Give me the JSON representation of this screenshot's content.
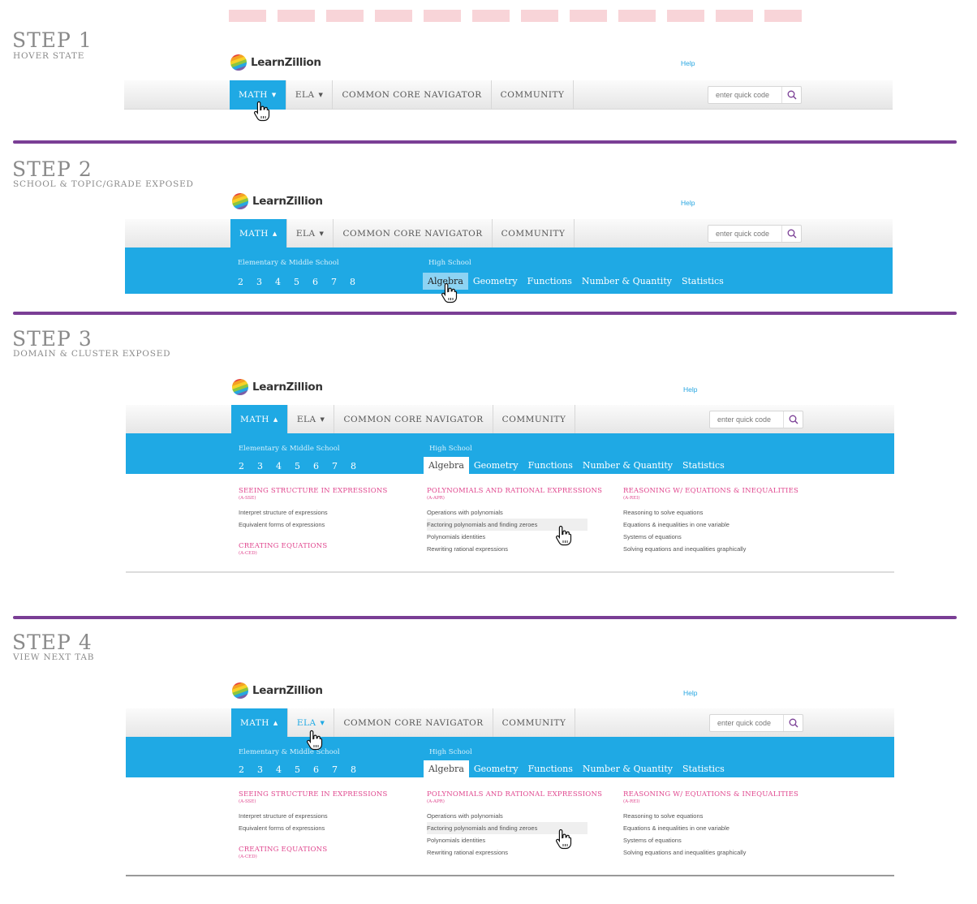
{
  "markers": [
    "",
    "",
    "",
    "",
    "",
    "",
    "",
    "",
    "",
    "",
    "",
    ""
  ],
  "steps": [
    {
      "title": "STEP 1",
      "subtitle": "HOVER STATE"
    },
    {
      "title": "STEP 2",
      "subtitle": "SCHOOL & TOPIC/GRADE EXPOSED"
    },
    {
      "title": "STEP 3",
      "subtitle": "DOMAIN & CLUSTER EXPOSED"
    },
    {
      "title": "STEP 4",
      "subtitle": "VIEW NEXT TAB"
    }
  ],
  "header": {
    "brand": "LearnZillion",
    "help": "Help",
    "logo_colors": [
      "#e6403a",
      "#f4a124",
      "#f7d227",
      "#8cc63f",
      "#27a6e1",
      "#7b5ea7"
    ]
  },
  "nav": {
    "items": [
      {
        "label": "MATH",
        "has_chevron": true
      },
      {
        "label": "ELA",
        "has_chevron": true
      },
      {
        "label": "COMMON CORE NAVIGATOR",
        "has_chevron": false
      },
      {
        "label": "COMMUNITY",
        "has_chevron": false
      }
    ],
    "chevron_down": "⌄",
    "chevron_up": "⌃",
    "quick_code_placeholder": "enter quick code",
    "search_icon": "search-icon"
  },
  "menu": {
    "elementary_label": "Elementary & Middle School",
    "grades": [
      "2",
      "3",
      "4",
      "5",
      "6",
      "7",
      "8"
    ],
    "high_school_label": "High School",
    "hs_topics": [
      "Algebra",
      "Geometry",
      "Functions",
      "Number & Quantity",
      "Statistics"
    ]
  },
  "domains": {
    "col1": [
      {
        "name": "SEEING STRUCTURE IN EXPRESSIONS",
        "code": "(A-SSE)",
        "clusters": [
          "Interpret structure of expressions",
          "Equivalent forms of expressions"
        ]
      },
      {
        "name": "CREATING EQUATIONS",
        "code": "(A-CED)",
        "clusters": []
      }
    ],
    "col2": [
      {
        "name": "POLYNOMIALS AND RATIONAL EXPRESSIONS",
        "code": "(A-APR)",
        "clusters": [
          "Operations with polynomials",
          "Factoring polynomials and finding zeroes",
          "Polynomials identities",
          "Rewriting rational expressions"
        ]
      }
    ],
    "col3": [
      {
        "name": "REASONING  W/ EQUATIONS & INEQUALITIES",
        "code": "(A-REI)",
        "clusters": [
          "Reasoning to solve equations",
          "Equations & inequalities in one variable",
          "Systems of equations",
          "Solving equations and inequalities graphically"
        ]
      }
    ]
  },
  "colors": {
    "accent_blue": "#1fa9e4",
    "divider_purple": "#7a3e95",
    "domain_pink": "#e0468e",
    "marker_pink": "#f8d4d8"
  }
}
